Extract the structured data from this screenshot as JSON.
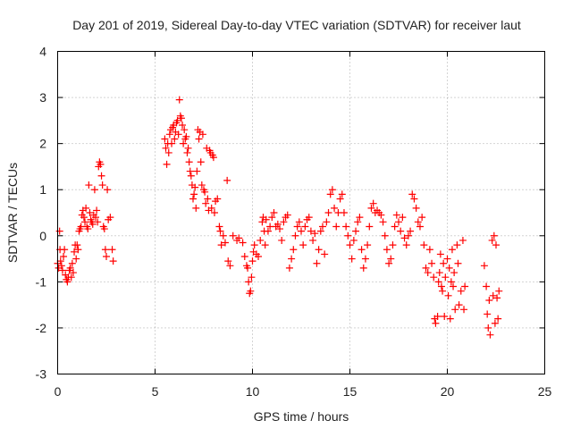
{
  "chart_data": {
    "type": "scatter",
    "title": "Day 201 of 2019, Sidereal Day-to-day VTEC variation (SDTVAR) for receiver laut",
    "xlabel": "GPS time / hours",
    "ylabel": "SDTVAR / TECUs",
    "xlim": [
      0,
      25
    ],
    "ylim": [
      -3,
      4
    ],
    "xticks": [
      0,
      5,
      10,
      15,
      20,
      25
    ],
    "yticks": [
      -3,
      -2,
      -1,
      0,
      1,
      2,
      3,
      4
    ],
    "xtick_labels": [
      "0",
      "5",
      "10",
      "15",
      "20",
      "25"
    ],
    "ytick_labels": [
      "-3",
      "-2",
      "-1",
      "0",
      "1",
      "2",
      "3",
      "4"
    ],
    "grid": true,
    "marker": "+",
    "color": "#ff0000",
    "series": [
      {
        "name": "SDTVAR",
        "points": [
          [
            0.0,
            -0.6
          ],
          [
            0.05,
            -0.7
          ],
          [
            0.1,
            0.1
          ],
          [
            0.12,
            -0.3
          ],
          [
            0.15,
            -0.55
          ],
          [
            0.2,
            -0.65
          ],
          [
            0.25,
            -0.75
          ],
          [
            0.3,
            -0.45
          ],
          [
            0.35,
            -0.3
          ],
          [
            0.4,
            -0.85
          ],
          [
            0.45,
            -0.95
          ],
          [
            0.5,
            -1.0
          ],
          [
            0.55,
            -0.9
          ],
          [
            0.6,
            -0.75
          ],
          [
            0.65,
            -0.7
          ],
          [
            0.7,
            -0.9
          ],
          [
            0.75,
            -0.6
          ],
          [
            0.8,
            -0.8
          ],
          [
            0.85,
            -0.35
          ],
          [
            0.9,
            -0.2
          ],
          [
            0.95,
            -0.5
          ],
          [
            1.0,
            -0.2
          ],
          [
            1.05,
            -0.3
          ],
          [
            1.1,
            0.1
          ],
          [
            1.15,
            0.15
          ],
          [
            1.2,
            0.2
          ],
          [
            1.25,
            0.45
          ],
          [
            1.3,
            0.55
          ],
          [
            1.35,
            0.4
          ],
          [
            1.4,
            0.3
          ],
          [
            1.45,
            0.6
          ],
          [
            1.5,
            0.2
          ],
          [
            1.55,
            0.15
          ],
          [
            1.6,
            1.1
          ],
          [
            1.65,
            0.5
          ],
          [
            1.7,
            0.35
          ],
          [
            1.75,
            0.3
          ],
          [
            1.8,
            0.25
          ],
          [
            1.85,
            0.45
          ],
          [
            1.9,
            1.0
          ],
          [
            1.95,
            0.4
          ],
          [
            2.0,
            0.55
          ],
          [
            2.05,
            0.3
          ],
          [
            2.1,
            1.5
          ],
          [
            2.15,
            1.6
          ],
          [
            2.2,
            1.55
          ],
          [
            2.25,
            1.3
          ],
          [
            2.3,
            1.1
          ],
          [
            2.35,
            0.2
          ],
          [
            2.4,
            0.15
          ],
          [
            2.45,
            -0.3
          ],
          [
            2.5,
            -0.45
          ],
          [
            2.55,
            1.0
          ],
          [
            2.6,
            0.35
          ],
          [
            2.7,
            0.4
          ],
          [
            2.8,
            -0.3
          ],
          [
            2.85,
            -0.55
          ],
          [
            5.5,
            2.1
          ],
          [
            5.55,
            1.9
          ],
          [
            5.6,
            1.55
          ],
          [
            5.65,
            2.0
          ],
          [
            5.7,
            1.8
          ],
          [
            5.75,
            2.2
          ],
          [
            5.8,
            2.3
          ],
          [
            5.85,
            2.0
          ],
          [
            5.9,
            2.35
          ],
          [
            5.95,
            2.4
          ],
          [
            6.0,
            2.1
          ],
          [
            6.05,
            2.25
          ],
          [
            6.1,
            2.45
          ],
          [
            6.15,
            2.5
          ],
          [
            6.2,
            2.2
          ],
          [
            6.25,
            2.95
          ],
          [
            6.3,
            2.6
          ],
          [
            6.35,
            2.55
          ],
          [
            6.4,
            2.4
          ],
          [
            6.45,
            2.0
          ],
          [
            6.5,
            2.3
          ],
          [
            6.55,
            2.1
          ],
          [
            6.6,
            2.15
          ],
          [
            6.65,
            1.8
          ],
          [
            6.7,
            1.9
          ],
          [
            6.75,
            1.6
          ],
          [
            6.8,
            1.4
          ],
          [
            6.85,
            1.3
          ],
          [
            6.9,
            1.1
          ],
          [
            6.95,
            0.8
          ],
          [
            7.0,
            0.9
          ],
          [
            7.05,
            1.05
          ],
          [
            7.1,
            0.6
          ],
          [
            7.15,
            1.4
          ],
          [
            7.2,
            2.3
          ],
          [
            7.25,
            2.1
          ],
          [
            7.3,
            2.25
          ],
          [
            7.35,
            1.6
          ],
          [
            7.4,
            1.1
          ],
          [
            7.45,
            2.2
          ],
          [
            7.5,
            1.0
          ],
          [
            7.55,
            0.95
          ],
          [
            7.6,
            0.7
          ],
          [
            7.65,
            1.9
          ],
          [
            7.7,
            0.8
          ],
          [
            7.75,
            0.55
          ],
          [
            7.8,
            1.85
          ],
          [
            7.85,
            1.8
          ],
          [
            7.9,
            0.6
          ],
          [
            7.95,
            1.75
          ],
          [
            8.0,
            1.7
          ],
          [
            8.05,
            0.5
          ],
          [
            8.1,
            0.75
          ],
          [
            8.2,
            0.8
          ],
          [
            8.3,
            0.2
          ],
          [
            8.35,
            0.1
          ],
          [
            8.4,
            -0.2
          ],
          [
            8.5,
            0.0
          ],
          [
            8.6,
            -0.15
          ],
          [
            8.7,
            1.2
          ],
          [
            8.75,
            -0.55
          ],
          [
            8.85,
            -0.65
          ],
          [
            9.0,
            0.0
          ],
          [
            9.2,
            -0.1
          ],
          [
            9.3,
            -0.05
          ],
          [
            9.5,
            -0.15
          ],
          [
            9.6,
            -0.45
          ],
          [
            9.7,
            -0.65
          ],
          [
            9.75,
            -0.7
          ],
          [
            9.8,
            -1.0
          ],
          [
            9.85,
            -1.25
          ],
          [
            9.9,
            -1.2
          ],
          [
            9.95,
            -0.9
          ],
          [
            10.0,
            -0.55
          ],
          [
            10.05,
            -0.35
          ],
          [
            10.1,
            -0.2
          ],
          [
            10.2,
            -0.4
          ],
          [
            10.3,
            -0.45
          ],
          [
            10.4,
            -0.1
          ],
          [
            10.5,
            0.3
          ],
          [
            10.55,
            0.4
          ],
          [
            10.6,
            0.1
          ],
          [
            10.65,
            -0.2
          ],
          [
            10.7,
            0.35
          ],
          [
            10.8,
            0.1
          ],
          [
            10.9,
            0.2
          ],
          [
            11.0,
            0.4
          ],
          [
            11.1,
            0.5
          ],
          [
            11.2,
            0.2
          ],
          [
            11.3,
            0.25
          ],
          [
            11.4,
            0.15
          ],
          [
            11.5,
            -0.1
          ],
          [
            11.6,
            0.3
          ],
          [
            11.7,
            0.4
          ],
          [
            11.8,
            0.45
          ],
          [
            11.9,
            -0.7
          ],
          [
            12.0,
            -0.5
          ],
          [
            12.1,
            -0.3
          ],
          [
            12.2,
            0.0
          ],
          [
            12.3,
            0.2
          ],
          [
            12.4,
            0.3
          ],
          [
            12.5,
            0.1
          ],
          [
            12.6,
            -0.2
          ],
          [
            12.7,
            0.2
          ],
          [
            12.8,
            0.35
          ],
          [
            12.9,
            0.4
          ],
          [
            13.0,
            0.1
          ],
          [
            13.1,
            -0.1
          ],
          [
            13.2,
            0.05
          ],
          [
            13.3,
            -0.6
          ],
          [
            13.4,
            -0.3
          ],
          [
            13.5,
            0.1
          ],
          [
            13.6,
            0.2
          ],
          [
            13.7,
            -0.4
          ],
          [
            13.8,
            0.3
          ],
          [
            13.9,
            0.5
          ],
          [
            14.0,
            0.9
          ],
          [
            14.1,
            1.0
          ],
          [
            14.2,
            0.6
          ],
          [
            14.3,
            0.2
          ],
          [
            14.4,
            0.5
          ],
          [
            14.5,
            0.8
          ],
          [
            14.6,
            0.9
          ],
          [
            14.7,
            0.5
          ],
          [
            14.8,
            0.2
          ],
          [
            14.9,
            0.0
          ],
          [
            15.0,
            -0.2
          ],
          [
            15.1,
            -0.5
          ],
          [
            15.2,
            -0.1
          ],
          [
            15.3,
            0.1
          ],
          [
            15.4,
            0.3
          ],
          [
            15.5,
            0.4
          ],
          [
            15.6,
            -0.3
          ],
          [
            15.7,
            -0.7
          ],
          [
            15.8,
            -0.5
          ],
          [
            15.9,
            -0.2
          ],
          [
            16.0,
            0.2
          ],
          [
            16.1,
            0.6
          ],
          [
            16.2,
            0.7
          ],
          [
            16.3,
            0.5
          ],
          [
            16.4,
            0.55
          ],
          [
            16.5,
            0.5
          ],
          [
            16.6,
            0.45
          ],
          [
            16.7,
            0.3
          ],
          [
            16.8,
            0.0
          ],
          [
            16.9,
            -0.3
          ],
          [
            17.0,
            -0.6
          ],
          [
            17.1,
            -0.5
          ],
          [
            17.2,
            -0.2
          ],
          [
            17.3,
            0.2
          ],
          [
            17.4,
            0.45
          ],
          [
            17.5,
            0.3
          ],
          [
            17.6,
            0.1
          ],
          [
            17.7,
            0.4
          ],
          [
            17.8,
            -0.05
          ],
          [
            17.9,
            -0.2
          ],
          [
            18.0,
            0.0
          ],
          [
            18.1,
            0.1
          ],
          [
            18.2,
            0.9
          ],
          [
            18.3,
            0.8
          ],
          [
            18.4,
            0.6
          ],
          [
            18.5,
            0.3
          ],
          [
            18.6,
            0.2
          ],
          [
            18.7,
            0.4
          ],
          [
            18.8,
            -0.2
          ],
          [
            18.9,
            -0.7
          ],
          [
            19.0,
            -0.8
          ],
          [
            19.1,
            -0.3
          ],
          [
            19.2,
            -0.6
          ],
          [
            19.3,
            -0.9
          ],
          [
            19.35,
            -1.8
          ],
          [
            19.4,
            -1.9
          ],
          [
            19.5,
            -1.75
          ],
          [
            19.55,
            -1.0
          ],
          [
            19.6,
            -0.8
          ],
          [
            19.65,
            -0.4
          ],
          [
            19.7,
            -1.1
          ],
          [
            19.75,
            -1.2
          ],
          [
            19.8,
            -0.6
          ],
          [
            19.85,
            -1.75
          ],
          [
            19.9,
            -0.9
          ],
          [
            20.0,
            -0.5
          ],
          [
            20.05,
            -1.3
          ],
          [
            20.1,
            -0.7
          ],
          [
            20.15,
            -1.8
          ],
          [
            20.2,
            -1.0
          ],
          [
            20.25,
            -0.3
          ],
          [
            20.3,
            -1.1
          ],
          [
            20.35,
            -0.8
          ],
          [
            20.4,
            -1.6
          ],
          [
            20.5,
            -0.2
          ],
          [
            20.55,
            -0.6
          ],
          [
            20.6,
            -1.5
          ],
          [
            20.7,
            -1.2
          ],
          [
            20.8,
            -0.1
          ],
          [
            20.85,
            -1.6
          ],
          [
            20.9,
            -1.1
          ],
          [
            21.9,
            -0.65
          ],
          [
            22.0,
            -1.1
          ],
          [
            22.05,
            -1.7
          ],
          [
            22.1,
            -2.0
          ],
          [
            22.15,
            -1.4
          ],
          [
            22.2,
            -2.15
          ],
          [
            22.3,
            -0.1
          ],
          [
            22.35,
            -1.3
          ],
          [
            22.4,
            0.0
          ],
          [
            22.45,
            -1.9
          ],
          [
            22.5,
            -0.2
          ],
          [
            22.55,
            -1.35
          ],
          [
            22.6,
            -1.8
          ],
          [
            22.65,
            -1.2
          ]
        ]
      }
    ]
  }
}
